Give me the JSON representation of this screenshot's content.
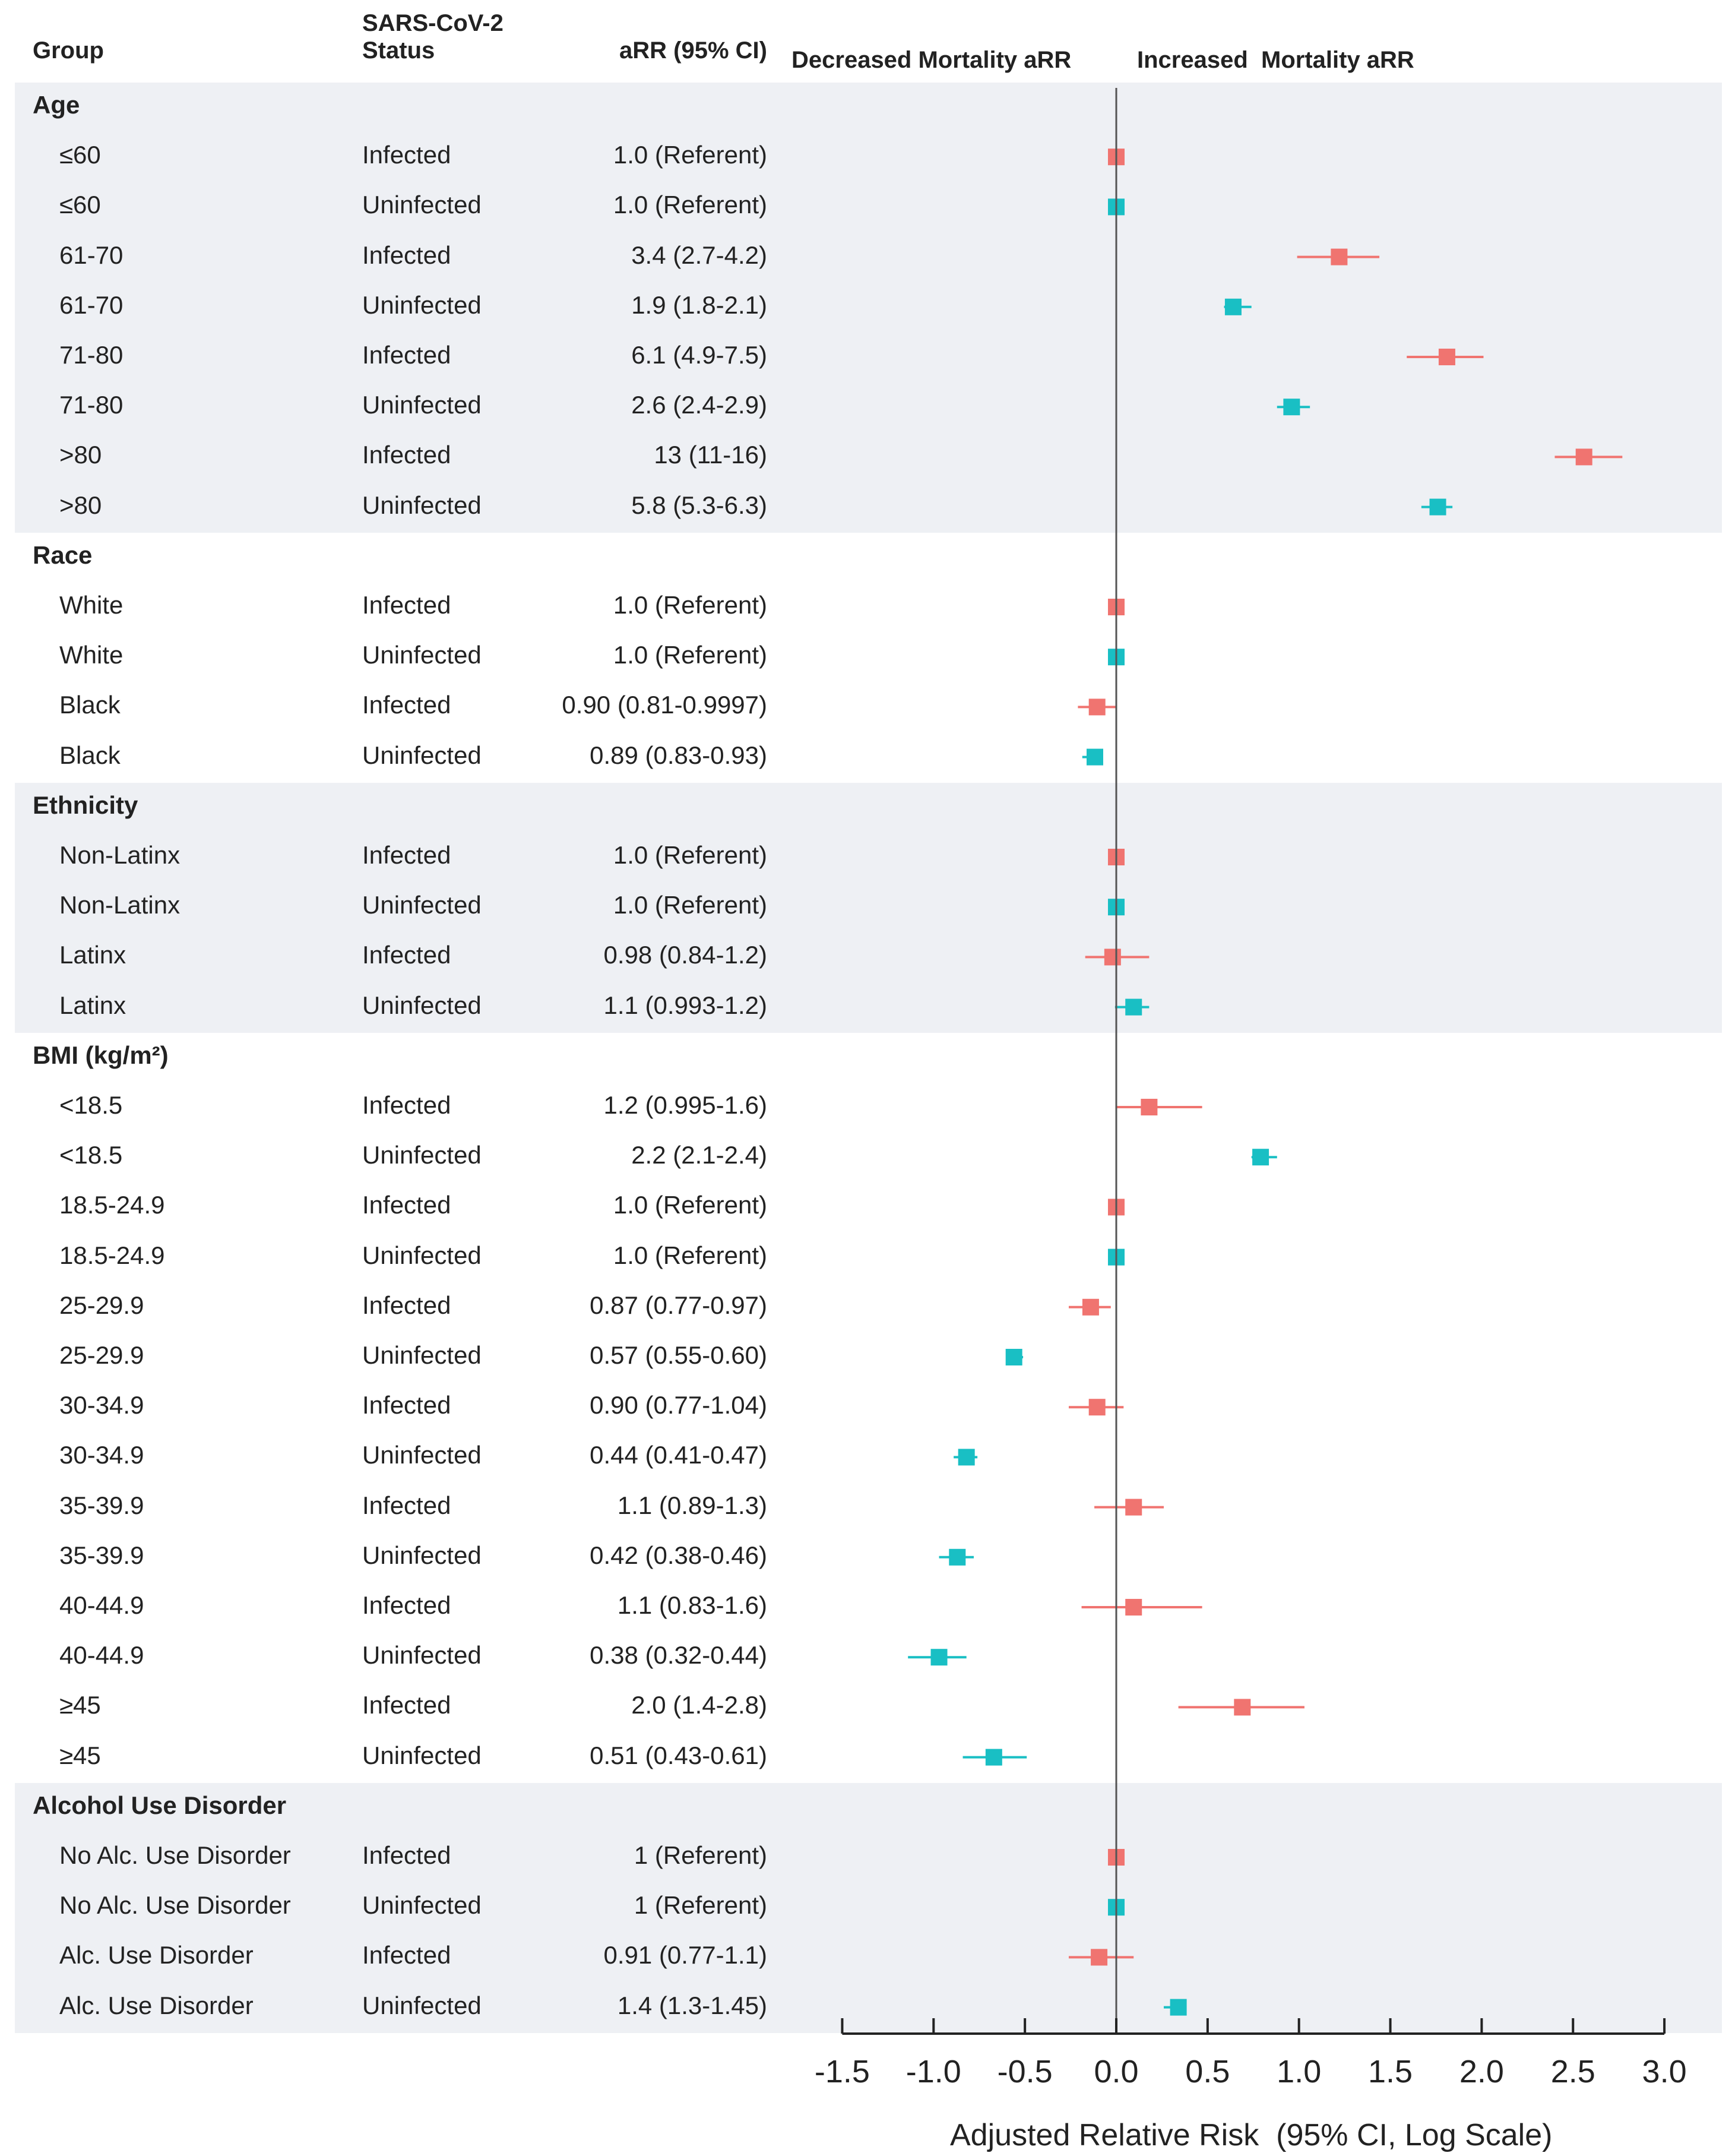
{
  "headers": {
    "group": "Group",
    "status": "SARS-CoV-2 Status",
    "arr": "aRR (95% CI)",
    "decreased": "Decreased Mortality aRR",
    "increased": "Increased  Mortality aRR"
  },
  "colors": {
    "infected": "#f07470",
    "uninfected": "#19bfc4",
    "band": "#eef0f4",
    "axis": "#222222"
  },
  "chart_data": {
    "type": "forest",
    "xlabel": "Adjusted Relative Risk  (95% CI, Log Scale)",
    "xlim": [
      -1.5,
      3.0
    ],
    "xticks": [
      "-1.5",
      "-1.0",
      "-0.5",
      "0.0",
      "0.5",
      "1.0",
      "1.5",
      "2.0",
      "2.5",
      "3.0"
    ],
    "reference_line": 0.0,
    "sections": [
      {
        "title": "Age",
        "shaded": true,
        "rows": [
          {
            "group": "≤60",
            "status": "Infected",
            "arr": "1.0 (Referent)",
            "est": 0.0,
            "lo": 0.0,
            "hi": 0.0
          },
          {
            "group": "≤60",
            "status": "Uninfected",
            "arr": "1.0 (Referent)",
            "est": 0.0,
            "lo": 0.0,
            "hi": 0.0
          },
          {
            "group": "61-70",
            "status": "Infected",
            "arr": "3.4 (2.7-4.2)",
            "est": 1.22,
            "lo": 0.99,
            "hi": 1.44
          },
          {
            "group": "61-70",
            "status": "Uninfected",
            "arr": "1.9 (1.8-2.1)",
            "est": 0.64,
            "lo": 0.59,
            "hi": 0.74
          },
          {
            "group": "71-80",
            "status": "Infected",
            "arr": "6.1 (4.9-7.5)",
            "est": 1.81,
            "lo": 1.59,
            "hi": 2.01
          },
          {
            "group": "71-80",
            "status": "Uninfected",
            "arr": "2.6 (2.4-2.9)",
            "est": 0.96,
            "lo": 0.88,
            "hi": 1.06
          },
          {
            "group": ">80",
            "status": "Infected",
            "arr": "13 (11-16)",
            "est": 2.56,
            "lo": 2.4,
            "hi": 2.77
          },
          {
            "group": ">80",
            "status": "Uninfected",
            "arr": "5.8 (5.3-6.3)",
            "est": 1.76,
            "lo": 1.67,
            "hi": 1.84
          }
        ]
      },
      {
        "title": "Race",
        "shaded": false,
        "rows": [
          {
            "group": "White",
            "status": "Infected",
            "arr": "1.0 (Referent)",
            "est": 0.0,
            "lo": 0.0,
            "hi": 0.0
          },
          {
            "group": "White",
            "status": "Uninfected",
            "arr": "1.0 (Referent)",
            "est": 0.0,
            "lo": 0.0,
            "hi": 0.0
          },
          {
            "group": "Black",
            "status": "Infected",
            "arr": "0.90 (0.81-0.9997)",
            "est": -0.105,
            "lo": -0.21,
            "hi": 0.0
          },
          {
            "group": "Black",
            "status": "Uninfected",
            "arr": "0.89 (0.83-0.93)",
            "est": -0.117,
            "lo": -0.186,
            "hi": -0.073
          }
        ]
      },
      {
        "title": "Ethnicity",
        "shaded": true,
        "rows": [
          {
            "group": "Non-Latinx",
            "status": "Infected",
            "arr": "1.0 (Referent)",
            "est": 0.0,
            "lo": 0.0,
            "hi": 0.0
          },
          {
            "group": "Non-Latinx",
            "status": "Uninfected",
            "arr": "1.0 (Referent)",
            "est": 0.0,
            "lo": 0.0,
            "hi": 0.0
          },
          {
            "group": "Latinx",
            "status": "Infected",
            "arr": "0.98 (0.84-1.2)",
            "est": -0.02,
            "lo": -0.17,
            "hi": 0.18
          },
          {
            "group": "Latinx",
            "status": "Uninfected",
            "arr": "1.1 (0.993-1.2)",
            "est": 0.095,
            "lo": -0.007,
            "hi": 0.18
          }
        ]
      },
      {
        "title": "BMI (kg/m²)",
        "shaded": false,
        "rows": [
          {
            "group": "<18.5",
            "status": "Infected",
            "arr": "1.2 (0.995-1.6)",
            "est": 0.18,
            "lo": -0.005,
            "hi": 0.47
          },
          {
            "group": "<18.5",
            "status": "Uninfected",
            "arr": "2.2 (2.1-2.4)",
            "est": 0.79,
            "lo": 0.74,
            "hi": 0.88
          },
          {
            "group": "18.5-24.9",
            "status": "Infected",
            "arr": "1.0 (Referent)",
            "est": 0.0,
            "lo": 0.0,
            "hi": 0.0
          },
          {
            "group": "18.5-24.9",
            "status": "Uninfected",
            "arr": "1.0 (Referent)",
            "est": 0.0,
            "lo": 0.0,
            "hi": 0.0
          },
          {
            "group": "25-29.9",
            "status": "Infected",
            "arr": "0.87 (0.77-0.97)",
            "est": -0.14,
            "lo": -0.26,
            "hi": -0.03
          },
          {
            "group": "25-29.9",
            "status": "Uninfected",
            "arr": "0.57 (0.55-0.60)",
            "est": -0.56,
            "lo": -0.6,
            "hi": -0.51
          },
          {
            "group": "30-34.9",
            "status": "Infected",
            "arr": "0.90 (0.77-1.04)",
            "est": -0.105,
            "lo": -0.26,
            "hi": 0.04
          },
          {
            "group": "30-34.9",
            "status": "Uninfected",
            "arr": "0.44 (0.41-0.47)",
            "est": -0.82,
            "lo": -0.89,
            "hi": -0.76
          },
          {
            "group": "35-39.9",
            "status": "Infected",
            "arr": "1.1 (0.89-1.3)",
            "est": 0.095,
            "lo": -0.12,
            "hi": 0.26
          },
          {
            "group": "35-39.9",
            "status": "Uninfected",
            "arr": "0.42 (0.38-0.46)",
            "est": -0.87,
            "lo": -0.97,
            "hi": -0.78
          },
          {
            "group": "40-44.9",
            "status": "Infected",
            "arr": "1.1 (0.83-1.6)",
            "est": 0.095,
            "lo": -0.19,
            "hi": 0.47
          },
          {
            "group": "40-44.9",
            "status": "Uninfected",
            "arr": "0.38 (0.32-0.44)",
            "est": -0.97,
            "lo": -1.14,
            "hi": -0.82
          },
          {
            "group": "≥45",
            "status": "Infected",
            "arr": "2.0 (1.4-2.8)",
            "est": 0.69,
            "lo": 0.34,
            "hi": 1.03
          },
          {
            "group": "≥45",
            "status": "Uninfected",
            "arr": "0.51 (0.43-0.61)",
            "est": -0.67,
            "lo": -0.84,
            "hi": -0.49
          }
        ]
      },
      {
        "title": "Alcohol Use Disorder",
        "shaded": true,
        "rows": [
          {
            "group": "No Alc. Use Disorder",
            "status": "Infected",
            "arr": "1 (Referent)",
            "est": 0.0,
            "lo": 0.0,
            "hi": 0.0
          },
          {
            "group": "No Alc. Use Disorder",
            "status": "Uninfected",
            "arr": "1 (Referent)",
            "est": 0.0,
            "lo": 0.0,
            "hi": 0.0
          },
          {
            "group": "Alc. Use Disorder",
            "status": "Infected",
            "arr": "0.91 (0.77-1.1)",
            "est": -0.094,
            "lo": -0.26,
            "hi": 0.095
          },
          {
            "group": "Alc. Use Disorder",
            "status": "Uninfected",
            "arr": "1.4 (1.3-1.45)",
            "est": 0.34,
            "lo": 0.26,
            "hi": 0.37
          }
        ]
      }
    ]
  }
}
